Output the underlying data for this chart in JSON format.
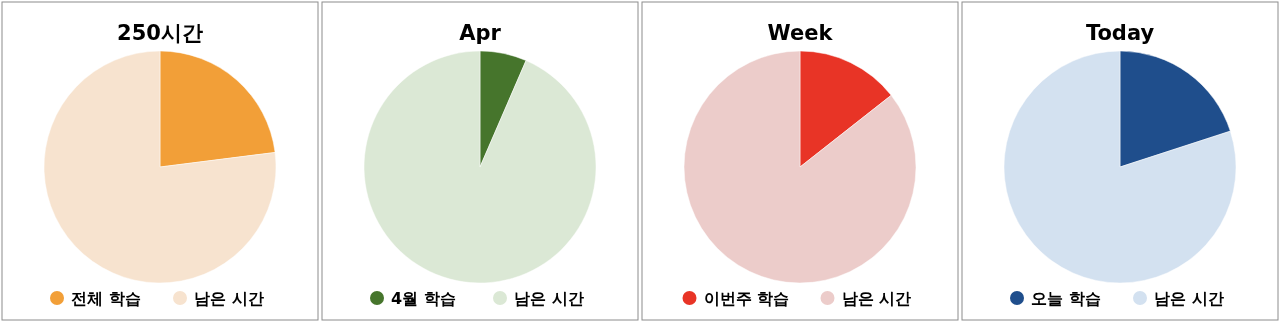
{
  "chart_data": [
    {
      "type": "pie",
      "title": "250시간",
      "categories": [
        "전체 학습",
        "남은 시간"
      ],
      "values": [
        23,
        77
      ],
      "colors": [
        "#f29f38",
        "#f7e3cf"
      ],
      "legend": "bottom"
    },
    {
      "type": "pie",
      "title": "Apr",
      "categories": [
        "4월 학습",
        "남은 시간"
      ],
      "values": [
        6.5,
        93.5
      ],
      "colors": [
        "#46752c",
        "#dbe8d5"
      ],
      "legend": "bottom"
    },
    {
      "type": "pie",
      "title": "Week",
      "categories": [
        "이번주 학습",
        "남은 시간"
      ],
      "values": [
        14.4,
        85.6
      ],
      "colors": [
        "#e83426",
        "#ecccca"
      ],
      "legend": "bottom"
    },
    {
      "type": "pie",
      "title": "Today",
      "categories": [
        "오늘 학습",
        "남은 시간"
      ],
      "values": [
        20,
        80
      ],
      "colors": [
        "#1f4e8c",
        "#d3e1f0"
      ],
      "legend": "bottom"
    }
  ]
}
